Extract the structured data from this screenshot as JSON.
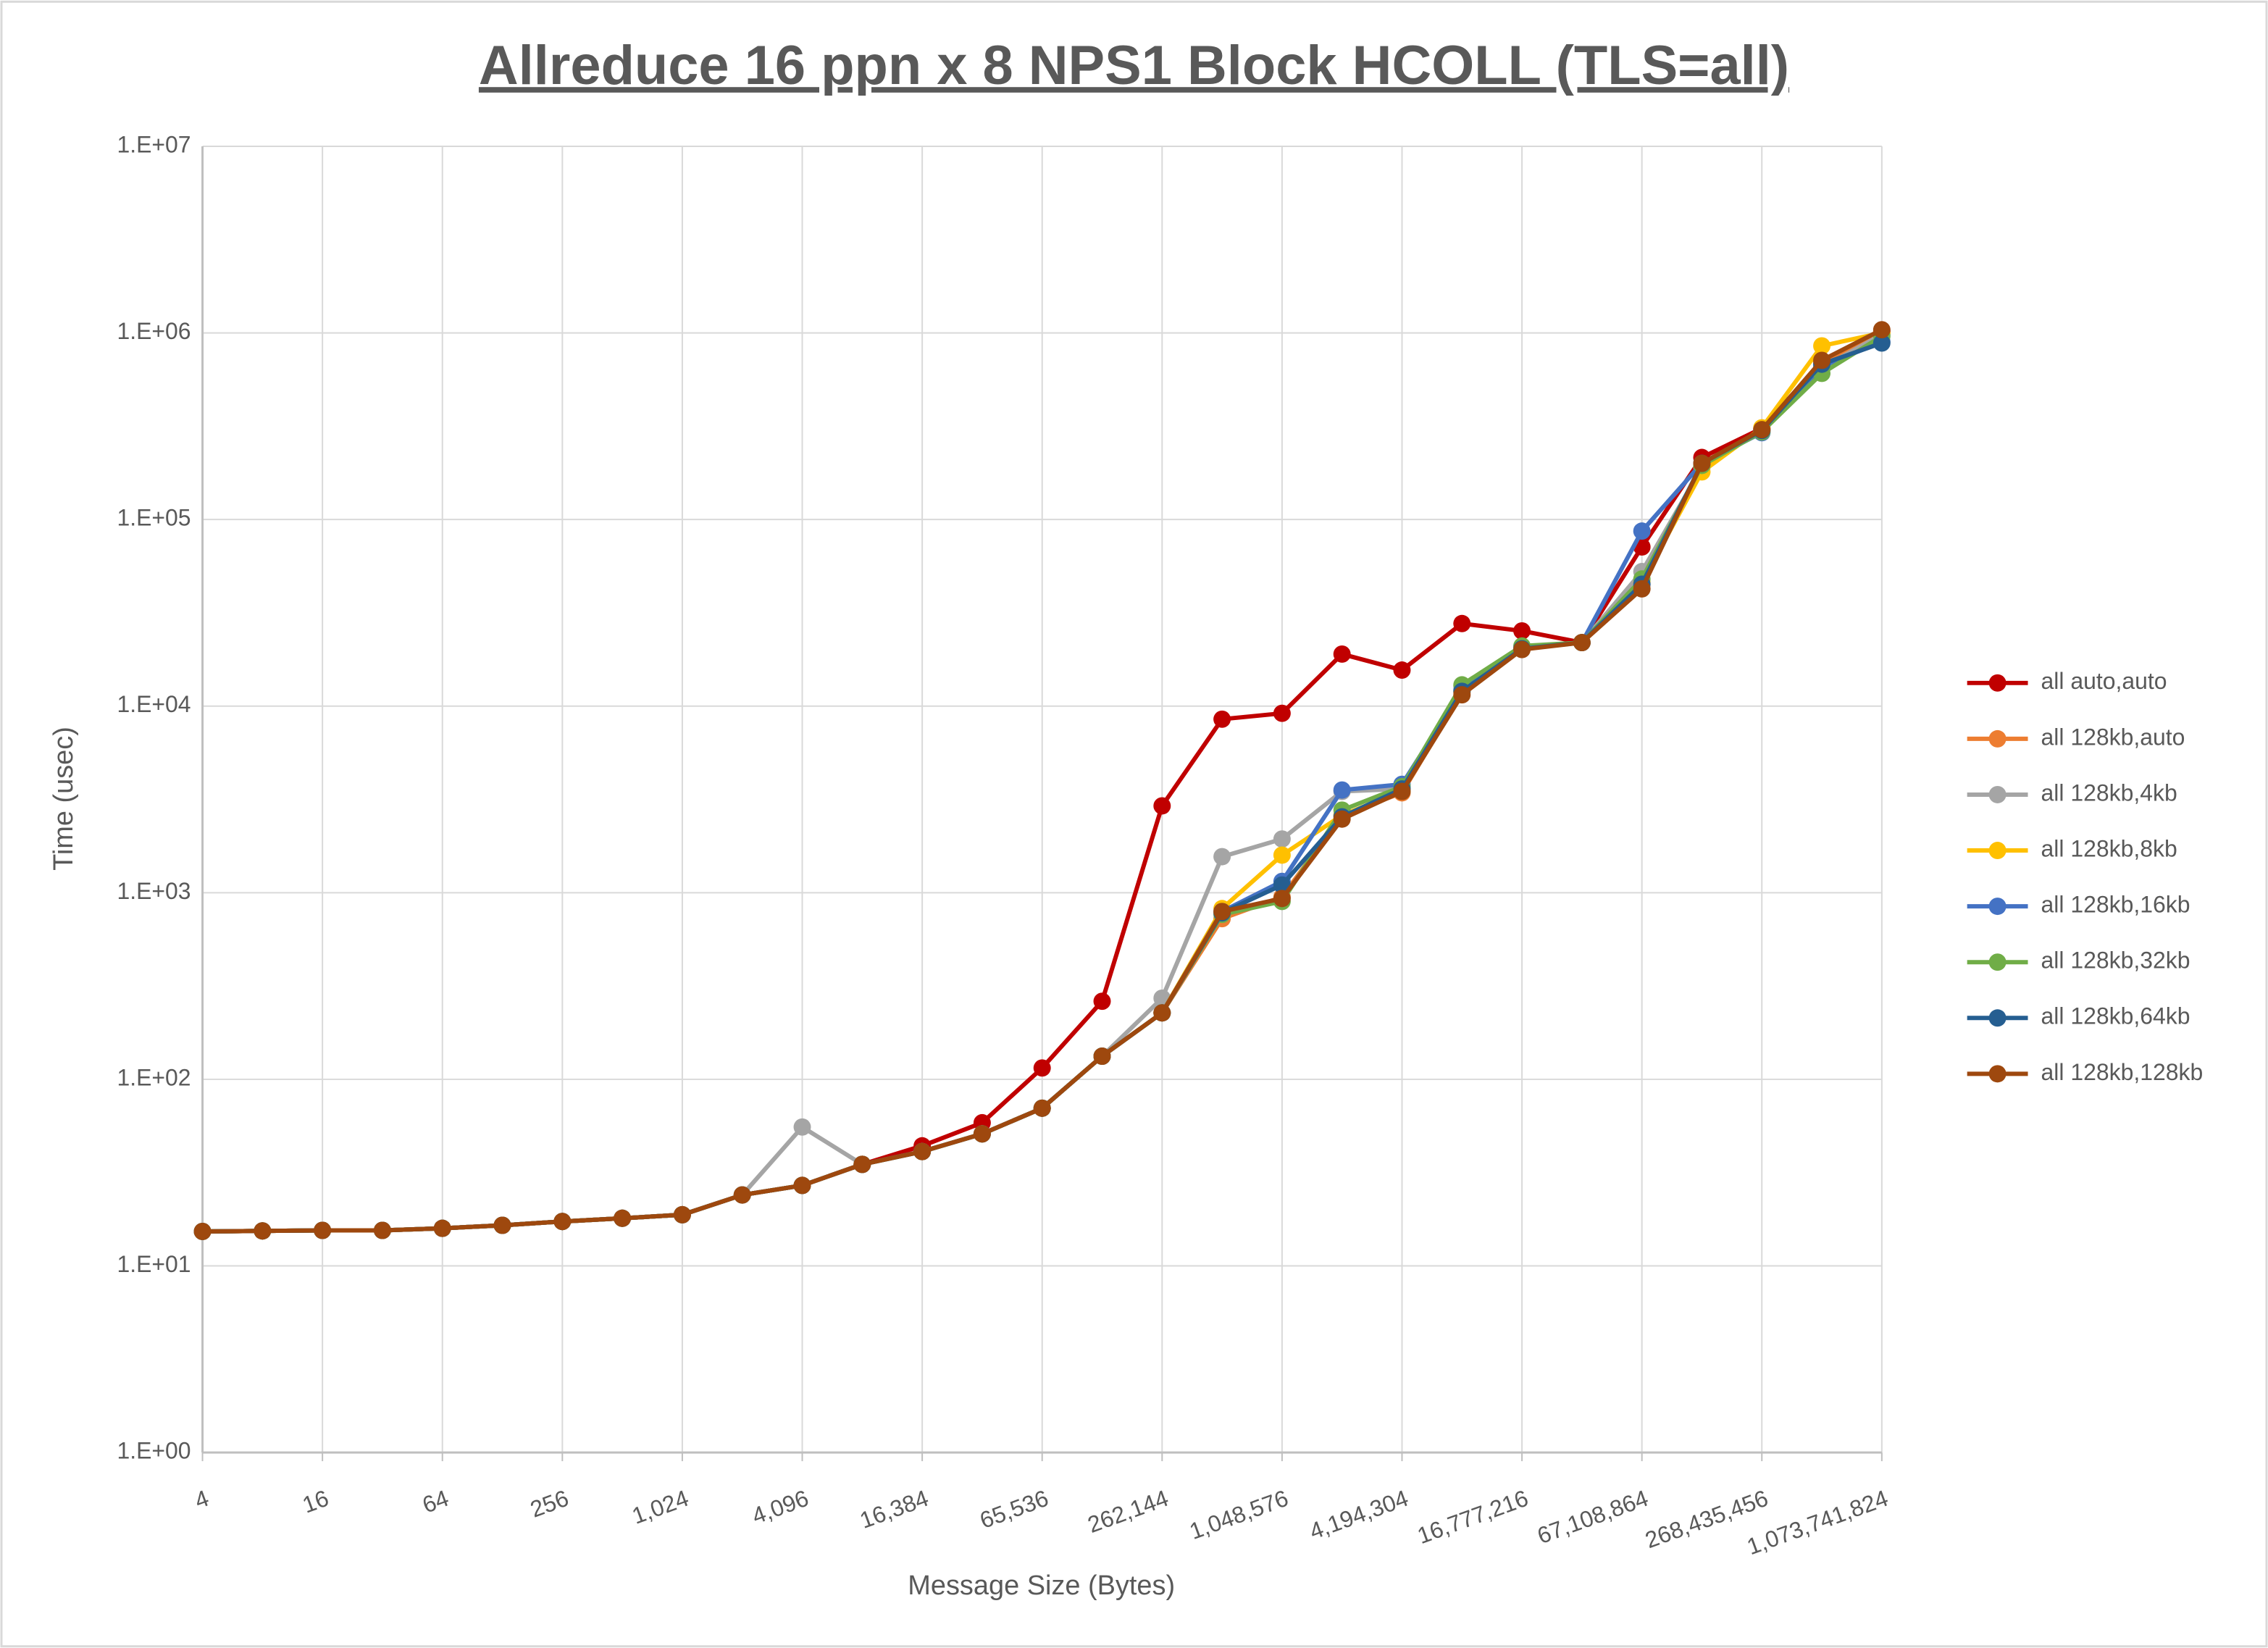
{
  "chart_data": {
    "type": "line",
    "title": "Allreduce 16 ppn x 8 NPS1 Block HCOLL (TLS=all)",
    "x_label": "Message Size (Bytes)",
    "y_label": "Time (usec)",
    "x": [
      4,
      8,
      16,
      32,
      64,
      128,
      256,
      512,
      1024,
      2048,
      4096,
      8192,
      16384,
      32768,
      65536,
      131072,
      262144,
      524288,
      1048576,
      2097152,
      4194304,
      8388608,
      16777216,
      33554432,
      67108864,
      134217728,
      268435456,
      536870912,
      1073741824
    ],
    "xscale": "log",
    "yscale": "log",
    "grid": true,
    "legend": "right",
    "xlim": [
      4,
      1073741824
    ],
    "xticks": [
      4,
      16,
      64,
      256,
      {
        "value": 1024,
        "label": "1,024"
      },
      {
        "value": 4096,
        "label": "4,096"
      },
      {
        "value": 16384,
        "label": "16,384"
      },
      {
        "value": 65536,
        "label": "65,536"
      },
      {
        "value": 262144,
        "label": "262,144"
      },
      {
        "value": 1048576,
        "label": "1,048,576"
      },
      {
        "value": 4194304,
        "label": "4,194,304"
      },
      {
        "value": 16777216,
        "label": "16,777,216"
      },
      {
        "value": 67108864,
        "label": "67,108,864"
      },
      {
        "value": 268435456,
        "label": "268,435,456"
      },
      {
        "value": 1073741824,
        "label": "1,073,741,824"
      }
    ],
    "ylim": [
      1,
      10000000
    ],
    "yticks": [
      {
        "value": 1,
        "label": "1.E+00"
      },
      {
        "value": 10,
        "label": "1.E+01"
      },
      {
        "value": 100,
        "label": "1.E+02"
      },
      {
        "value": 1000,
        "label": "1.E+03"
      },
      {
        "value": 10000,
        "label": "1.E+04"
      },
      {
        "value": 100000,
        "label": "1.E+05"
      },
      {
        "value": 1000000,
        "label": "1.E+06"
      },
      {
        "value": 10000000,
        "label": "1.E+07"
      }
    ],
    "series": [
      {
        "name": "all auto,auto",
        "color": "#c00000",
        "values": [
          15.3,
          15.4,
          15.5,
          15.5,
          15.9,
          16.5,
          17.3,
          18,
          18.8,
          24,
          27,
          35,
          44,
          58.5,
          115,
          262,
          2920,
          8510,
          9150,
          19000,
          15600,
          27700,
          25300,
          21900,
          71300,
          215000,
          308000,
          700000,
          1020000
        ]
      },
      {
        "name": "all 128kb,auto",
        "color": "#ed7d31",
        "values": [
          15.3,
          15.4,
          15.5,
          15.5,
          15.9,
          16.5,
          17.3,
          18,
          18.8,
          24,
          27,
          35,
          41,
          51,
          70,
          133,
          227,
          726,
          950,
          2600,
          3430,
          11800,
          20300,
          21900,
          45000,
          195000,
          300000,
          690000,
          1000000
        ]
      },
      {
        "name": "all 128kb,4kb",
        "color": "#a5a5a5",
        "values": [
          15.3,
          15.4,
          15.5,
          15.5,
          15.9,
          16.5,
          17.3,
          18,
          18.8,
          24,
          55.5,
          35,
          41,
          51,
          70,
          133,
          272,
          1560,
          1940,
          3490,
          3600,
          12800,
          20800,
          21900,
          52600,
          190000,
          300000,
          650000,
          980000
        ]
      },
      {
        "name": "all 128kb,8kb",
        "color": "#ffc000",
        "values": [
          15.3,
          15.4,
          15.5,
          15.5,
          15.9,
          16.5,
          17.3,
          18,
          18.8,
          24,
          27,
          35,
          41,
          51,
          70,
          133,
          227,
          822,
          1590,
          2600,
          3500,
          12000,
          20300,
          21900,
          46000,
          180000,
          310000,
          852000,
          1000000
        ]
      },
      {
        "name": "all 128kb,16kb",
        "color": "#4472c4",
        "values": [
          15.3,
          15.4,
          15.5,
          15.5,
          15.9,
          16.5,
          17.3,
          18,
          18.8,
          24,
          27,
          35,
          41,
          51,
          70,
          133,
          227,
          793,
          1150,
          3550,
          3810,
          12200,
          20500,
          21900,
          86700,
          200000,
          292000,
          660000,
          898000
        ]
      },
      {
        "name": "all 128kb,32kb",
        "color": "#70ad47",
        "values": [
          15.3,
          15.4,
          15.5,
          15.5,
          15.9,
          16.5,
          17.3,
          18,
          18.8,
          24,
          27,
          35,
          41,
          51,
          70,
          133,
          227,
          765,
          898,
          2770,
          3700,
          13000,
          21000,
          21900,
          48000,
          195000,
          295000,
          607000,
          960000
        ]
      },
      {
        "name": "all 128kb,64kb",
        "color": "#255e91",
        "values": [
          15.3,
          15.4,
          15.5,
          15.5,
          15.9,
          16.5,
          17.3,
          18,
          18.8,
          24,
          27,
          35,
          41,
          51,
          70,
          133,
          227,
          780,
          1100,
          2550,
          3600,
          12000,
          20300,
          21900,
          45000,
          200000,
          300000,
          680000,
          883000
        ]
      },
      {
        "name": "all 128kb,128kb",
        "color": "#9e480e",
        "values": [
          15.3,
          15.4,
          15.5,
          15.5,
          15.9,
          16.5,
          17.3,
          18,
          18.8,
          24,
          27,
          35,
          41,
          51,
          70,
          133,
          227,
          793,
          931,
          2480,
          3490,
          11500,
          20100,
          21900,
          42500,
          200000,
          303000,
          713000,
          1040000
        ]
      }
    ]
  }
}
